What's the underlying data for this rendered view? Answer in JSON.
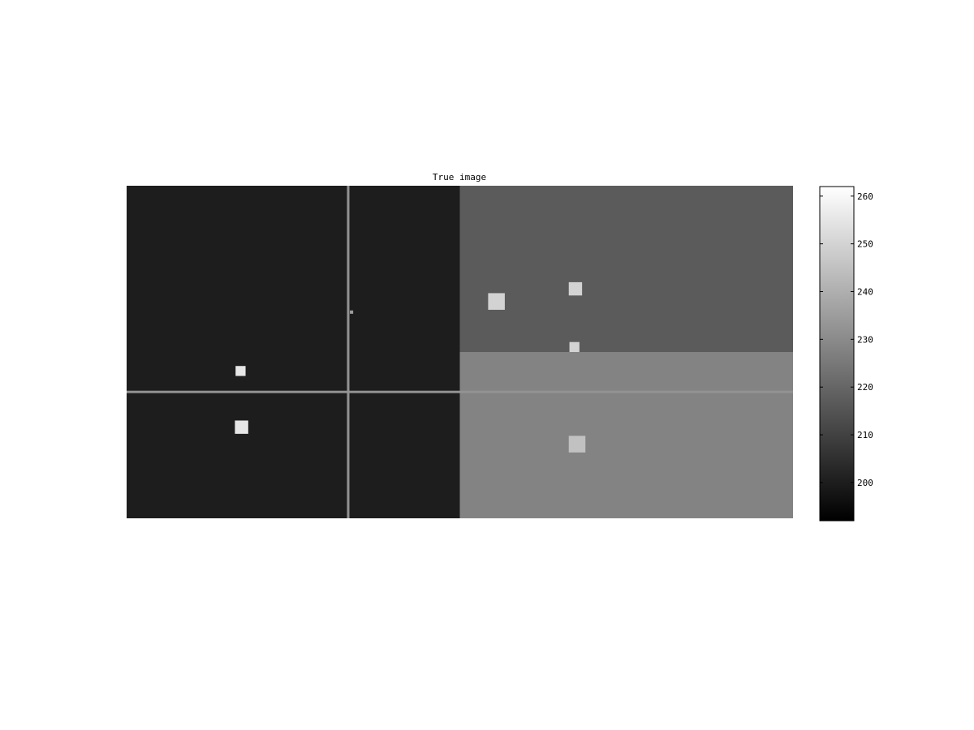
{
  "chart_data": {
    "type": "heatmap",
    "title": "True image",
    "colormap": "gray",
    "colorbar": {
      "range": [
        192,
        262
      ],
      "ticks": [
        200,
        210,
        220,
        230,
        240,
        250,
        260
      ],
      "tick_labels": [
        "200",
        "210",
        "220",
        "230",
        "240",
        "250",
        "260"
      ]
    },
    "image": {
      "width": 200,
      "height": 100,
      "regions": [
        {
          "name": "left-half",
          "x": [
            0,
            100
          ],
          "y": [
            0,
            100
          ],
          "value": 200
        },
        {
          "name": "top-right",
          "x": [
            100,
            200
          ],
          "y": [
            0,
            50
          ],
          "value": 217
        },
        {
          "name": "bottom-right",
          "x": [
            100,
            200
          ],
          "y": [
            50,
            100
          ],
          "value": 228
        }
      ],
      "lines": [
        {
          "name": "vertical-line",
          "orientation": "vertical",
          "pos": 66.5,
          "from": 0,
          "to": 100,
          "value": 232
        },
        {
          "name": "horizontal-line",
          "orientation": "horizontal",
          "pos": 62,
          "from": 0,
          "to": 200,
          "value": 232
        }
      ],
      "squares": [
        {
          "name": "left-upper",
          "cx": 34.2,
          "cy": 55.7,
          "size": 3.0,
          "value": 255
        },
        {
          "name": "left-lower",
          "cx": 34.5,
          "cy": 72.6,
          "size": 4.0,
          "value": 255
        },
        {
          "name": "right-a",
          "cx": 111.0,
          "cy": 34.8,
          "size": 5.0,
          "value": 250
        },
        {
          "name": "right-b",
          "cx": 134.7,
          "cy": 31.0,
          "size": 4.0,
          "value": 250
        },
        {
          "name": "right-c",
          "cx": 134.4,
          "cy": 48.5,
          "size": 3.0,
          "value": 250
        },
        {
          "name": "right-d",
          "cx": 135.2,
          "cy": 77.7,
          "size": 5.0,
          "value": 245
        },
        {
          "name": "tiny-dot",
          "cx": 67.5,
          "cy": 38.0,
          "size": 1.0,
          "value": 235
        }
      ]
    }
  }
}
